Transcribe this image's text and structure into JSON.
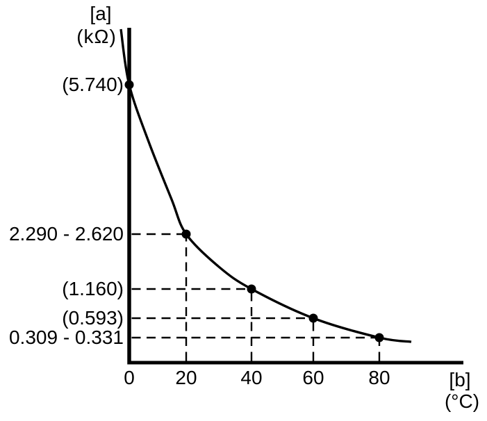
{
  "colors": {
    "background": "#ffffff",
    "ink": "#000000"
  },
  "axis_labels": {
    "y_symbol": "[a]",
    "y_unit": "(kΩ)",
    "x_symbol": "[b]",
    "x_unit": "(°C)"
  },
  "chart_data": {
    "type": "line",
    "title": "",
    "xlabel": "[b] (°C)",
    "ylabel": "[a] (kΩ)",
    "x_tick_labels": [
      "0",
      "20",
      "40",
      "60",
      "80"
    ],
    "xlim": [
      0,
      90
    ],
    "ylim": [
      0,
      6.5
    ],
    "grid": false,
    "legend": "none",
    "curve": "smooth monotonically decreasing decay through all points (NTC thermistor resistance vs temperature), extending above the top point and past 80 °C",
    "guides": "black dashed lines connect each data point horizontally to the y-axis and vertically to the x-axis",
    "points": [
      {
        "x": 0,
        "y": 5.74,
        "y_label": "(5.740)"
      },
      {
        "x": 20,
        "y_min": 2.29,
        "y_max": 2.62,
        "y_label": "2.290 - 2.620"
      },
      {
        "x": 40,
        "y": 1.16,
        "y_label": "(1.160)"
      },
      {
        "x": 60,
        "y": 0.593,
        "y_label": "(0.593)"
      },
      {
        "x": 80,
        "y_min": 0.309,
        "y_max": 0.331,
        "y_label": "0.309 - 0.331"
      }
    ]
  }
}
